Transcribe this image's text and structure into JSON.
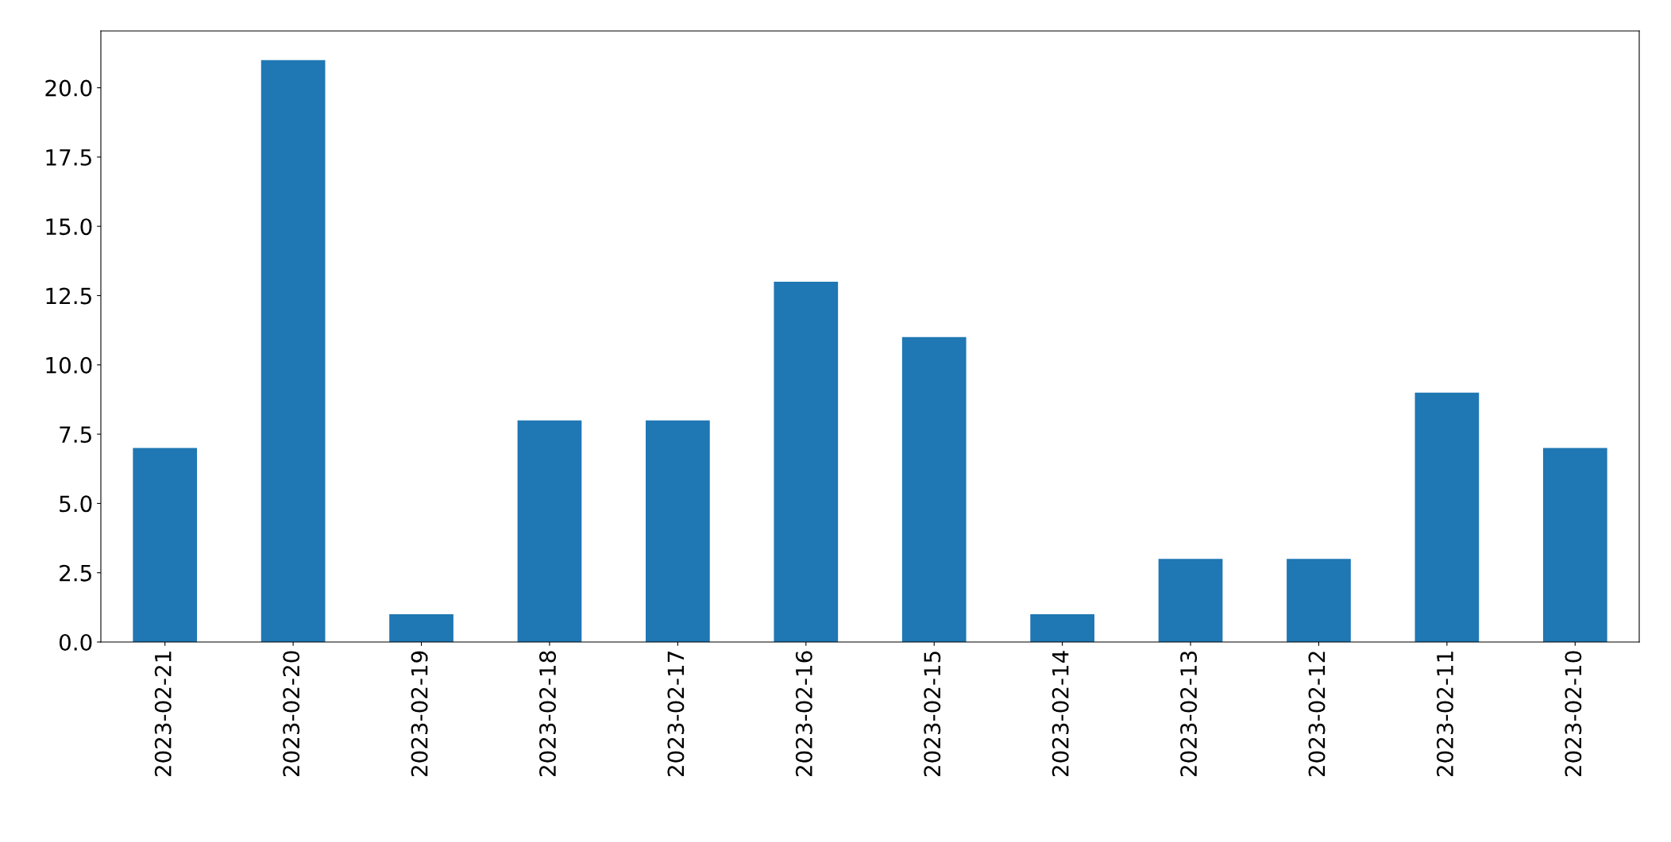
{
  "chart_data": {
    "type": "bar",
    "categories": [
      "2023-02-21",
      "2023-02-20",
      "2023-02-19",
      "2023-02-18",
      "2023-02-17",
      "2023-02-16",
      "2023-02-15",
      "2023-02-14",
      "2023-02-13",
      "2023-02-12",
      "2023-02-11",
      "2023-02-10"
    ],
    "values": [
      7,
      21,
      1,
      8,
      8,
      13,
      11,
      1,
      3,
      3,
      9,
      7
    ],
    "color": "#1f77b4",
    "ylim": [
      0,
      22.05
    ],
    "yticks": [
      {
        "value": 0,
        "label": "0.0"
      },
      {
        "value": 2.5,
        "label": "2.5"
      },
      {
        "value": 5,
        "label": "5.0"
      },
      {
        "value": 7.5,
        "label": "7.5"
      },
      {
        "value": 10,
        "label": "10.0"
      },
      {
        "value": 12.5,
        "label": "12.5"
      },
      {
        "value": 15,
        "label": "15.0"
      },
      {
        "value": 17.5,
        "label": "17.5"
      },
      {
        "value": 20,
        "label": "20.0"
      }
    ],
    "grid": false,
    "legend": false
  }
}
